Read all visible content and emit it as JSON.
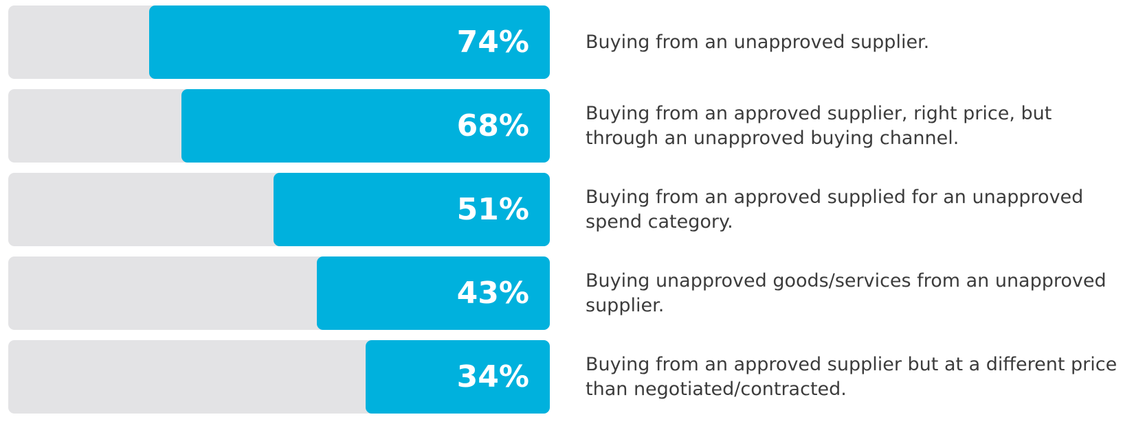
{
  "chart_data": {
    "type": "barh",
    "categories": [
      "Buying from an unapproved supplier.",
      "Buying from an approved supplier, right price, but through an unapproved buying channel.",
      "Buying from an approved supplied for an unapproved spend category.",
      "Buying unapproved goods/services from an unapproved supplier.",
      "Buying from an approved supplier but at a different price than negotiated/contracted."
    ],
    "values": [
      74,
      68,
      51,
      43,
      34
    ],
    "value_labels": [
      "74%",
      "68%",
      "51%",
      "43%",
      "34%"
    ],
    "xlim": [
      0,
      100
    ],
    "color": "#00b1dd",
    "track_color": "#e3e3e5"
  }
}
